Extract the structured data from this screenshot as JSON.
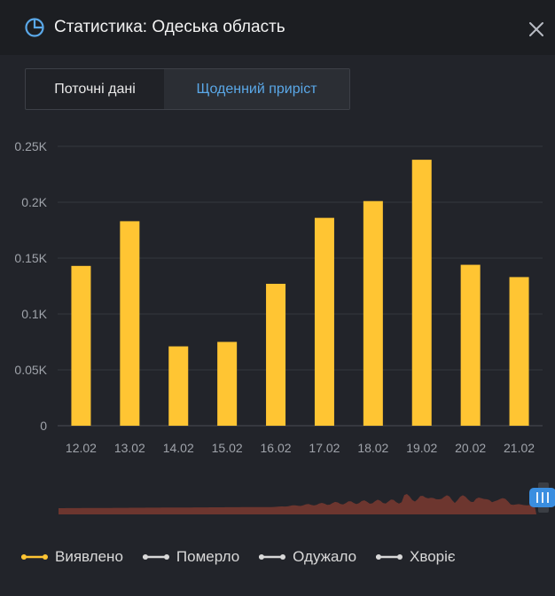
{
  "header": {
    "title": "Статистика: Одеська область",
    "icon": "pie-chart-icon",
    "close_icon": "close-icon"
  },
  "tabs": [
    {
      "label": "Поточні дані",
      "active": false
    },
    {
      "label": "Щоденний приріст",
      "active": true
    }
  ],
  "colors": {
    "accent": "#5aa8e8",
    "bar": "#ffc533",
    "background": "#22242a",
    "navigator_fill": "#7a3a30"
  },
  "chart_data": {
    "type": "bar",
    "categories": [
      "12.02",
      "13.02",
      "14.02",
      "15.02",
      "16.02",
      "17.02",
      "18.02",
      "19.02",
      "20.02",
      "21.02"
    ],
    "series": [
      {
        "name": "Виявлено",
        "values": [
          143,
          183,
          71,
          75,
          127,
          186,
          201,
          238,
          144,
          133
        ]
      }
    ],
    "y_ticks": [
      "0",
      "0.05K",
      "0.1K",
      "0.15K",
      "0.2K",
      "0.25K"
    ],
    "ylim": [
      0,
      250
    ],
    "grid": true,
    "legend_position": "bottom-left"
  },
  "legend": [
    {
      "label": "Виявлено",
      "color": "#ffc533"
    },
    {
      "label": "Померло",
      "color": "#d8d8d8"
    },
    {
      "label": "Одужало",
      "color": "#d8d8d8"
    },
    {
      "label": "Хворіє",
      "color": "#d8d8d8"
    }
  ]
}
